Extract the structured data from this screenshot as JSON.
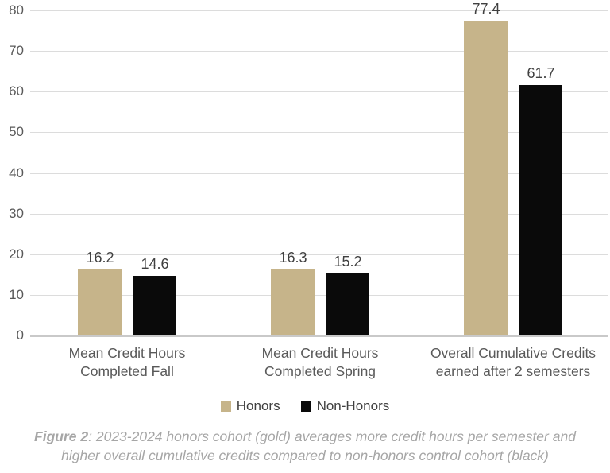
{
  "chart_data": {
    "type": "bar",
    "title": "",
    "xlabel": "",
    "ylabel": "",
    "ylim": [
      0,
      80
    ],
    "ytick_step": 10,
    "grid": true,
    "legend_position": "bottom",
    "categories": [
      {
        "lines": [
          "Mean Credit Hours",
          "Completed Fall"
        ]
      },
      {
        "lines": [
          "Mean Credit Hours",
          "Completed Spring"
        ]
      },
      {
        "lines": [
          "Overall Cumulative Credits",
          "earned after 2 semesters"
        ]
      }
    ],
    "series": [
      {
        "name": "Honors",
        "color": "#c6b48a",
        "values": [
          16.2,
          16.3,
          77.4
        ]
      },
      {
        "name": "Non-Honors",
        "color": "#0a0a0a",
        "values": [
          14.6,
          15.2,
          61.7
        ]
      }
    ],
    "value_labels": [
      [
        "16.2",
        "16.3",
        "77.4"
      ],
      [
        "14.6",
        "15.2",
        "61.7"
      ]
    ]
  },
  "colors": {
    "honors_gold": "#c6b48a",
    "non_honors_black": "#0a0a0a",
    "gridline": "#dcdcdc",
    "axis_text": "#595959",
    "value_text": "#404040",
    "caption_text": "#a6a6a6"
  },
  "caption": {
    "figure_label": "Figure 2",
    "line1_rest": ": 2023-2024 honors cohort (gold) averages more credit hours per semester and",
    "line2": "higher overall cumulative credits compared to non-honors control cohort (black)"
  }
}
